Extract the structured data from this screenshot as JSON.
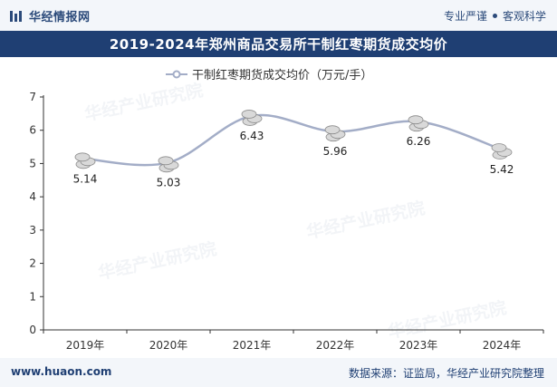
{
  "header": {
    "brand": "华经情报网",
    "slogan_left": "专业严谨",
    "slogan_right": "客观科学"
  },
  "title": "2019-2024年郑州商品交易所干制红枣期货成交均价",
  "watermark": "华经产业研究院",
  "footer": {
    "site": "www.huaon.com",
    "source": "数据来源：证监局，华经产业研究院整理"
  },
  "colors": {
    "line": "#a3adc7",
    "title_bg": "#1f3f73",
    "brand": "#2b4a7a",
    "marker": "#d9d9d9"
  },
  "chart_data": {
    "type": "line",
    "categories": [
      "2019年",
      "2020年",
      "2021年",
      "2022年",
      "2023年",
      "2024年"
    ],
    "series": [
      {
        "name": "干制红枣期货成交均价（万元/手）",
        "values": [
          5.14,
          5.03,
          6.43,
          5.96,
          6.26,
          5.42
        ]
      }
    ],
    "data_labels": [
      "5.14",
      "5.03",
      "6.43",
      "5.96",
      "6.26",
      "5.42"
    ],
    "ylim": [
      0,
      7
    ],
    "yticks": [
      "0",
      "1",
      "2",
      "3",
      "4",
      "5",
      "6",
      "7"
    ],
    "legend_position": "top-center",
    "grid": false,
    "marker": "coin-stack",
    "smooth": true
  }
}
